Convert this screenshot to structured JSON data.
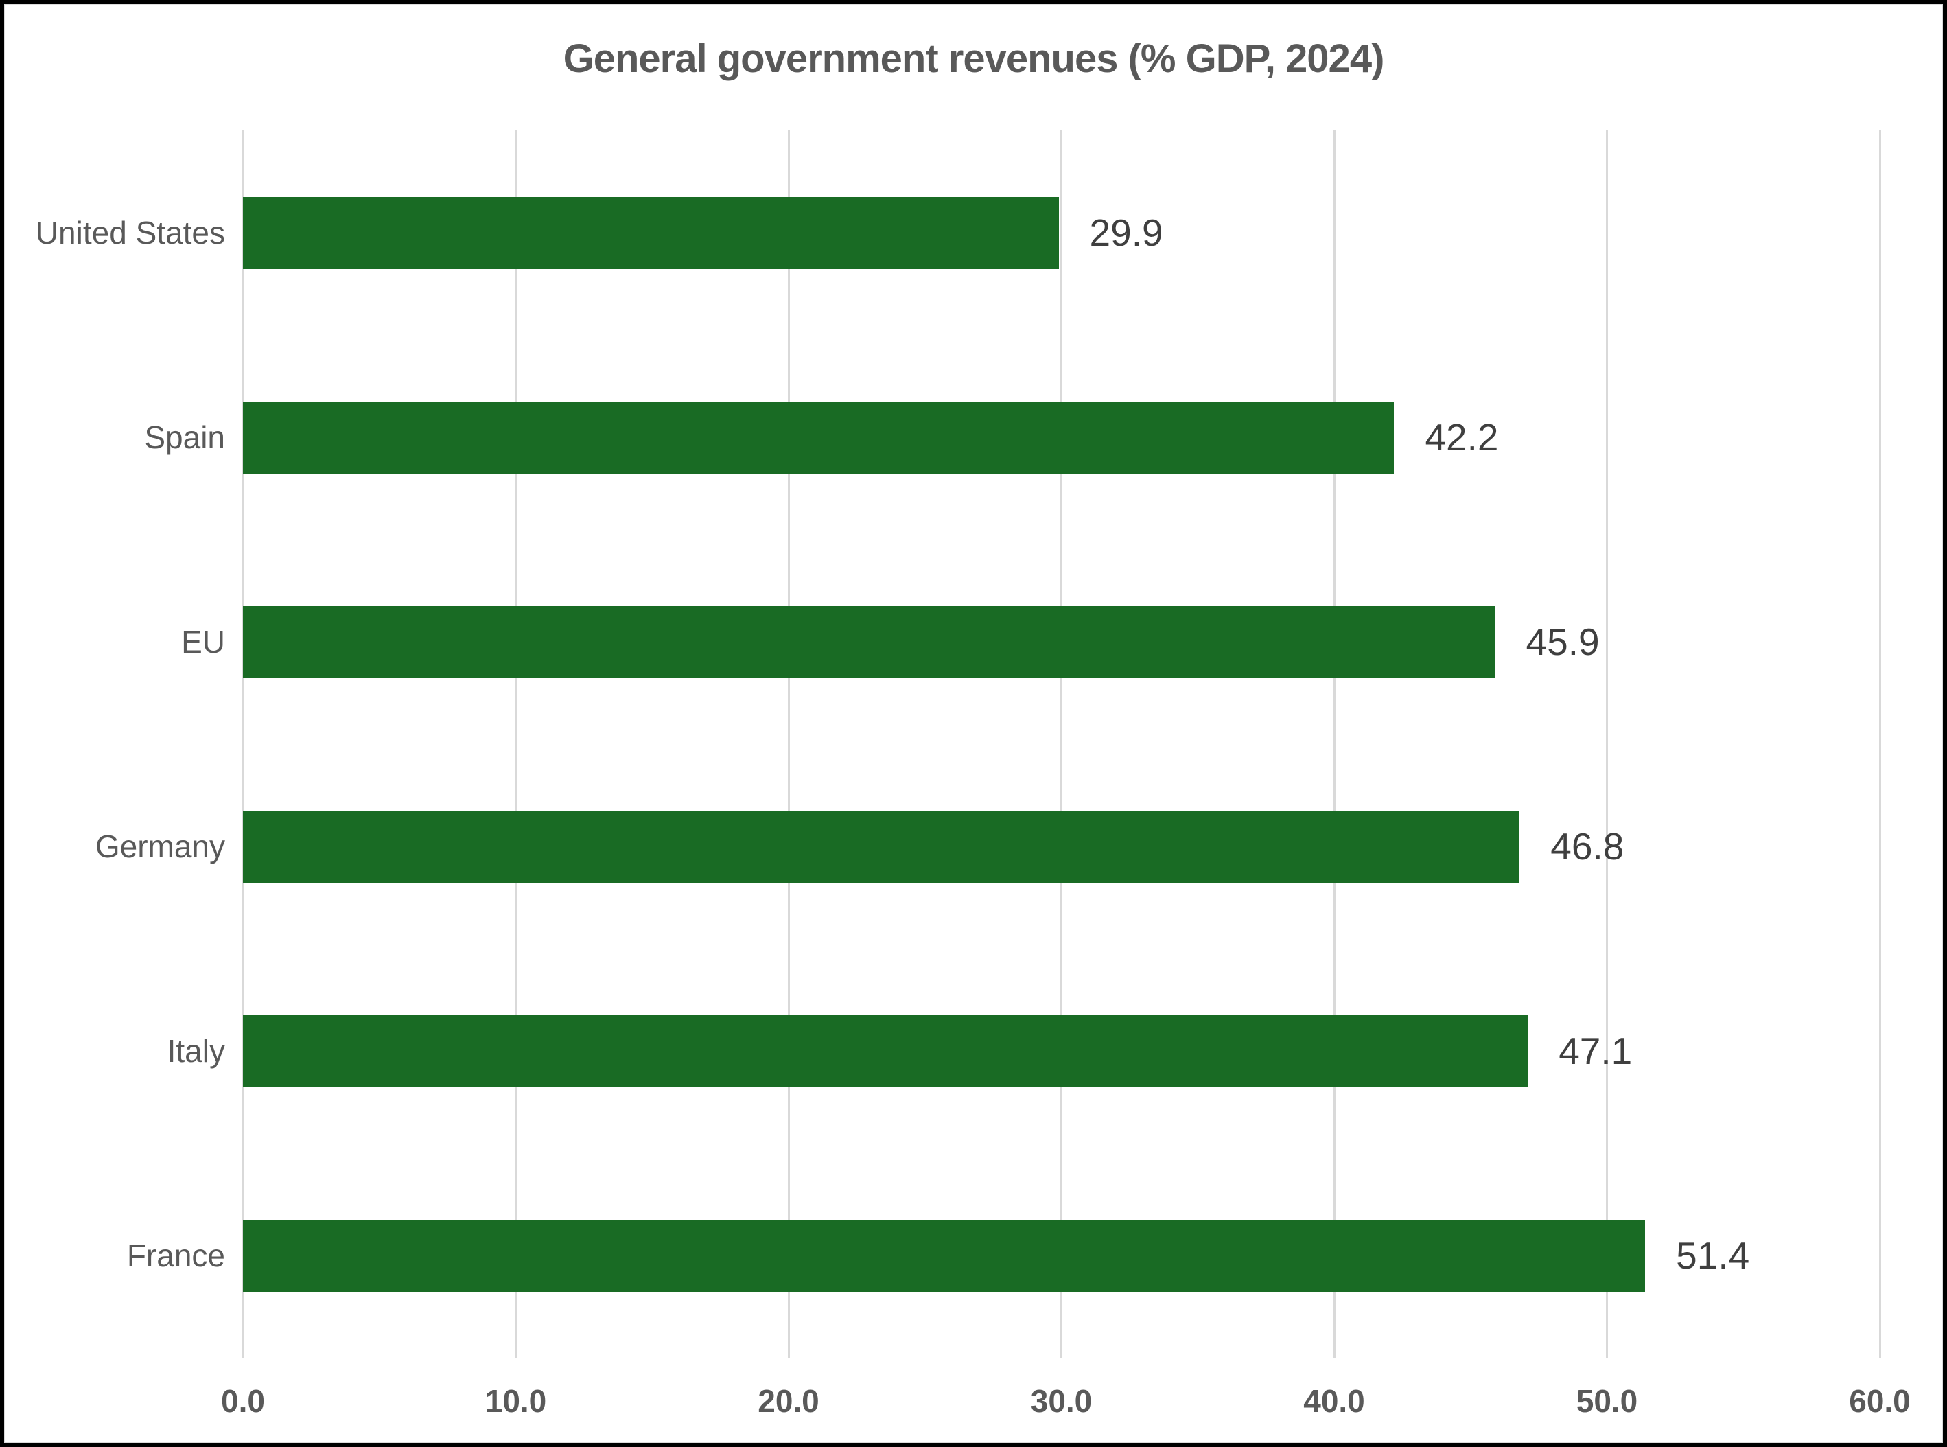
{
  "window": {
    "background_color": "#ffffff",
    "frame_border_color": "#000000",
    "inner_hairline_color": "#dcdcdc"
  },
  "chart_data": {
    "type": "bar",
    "orientation": "horizontal",
    "title": "General government revenues (% GDP, 2024)",
    "categories": [
      "United States",
      "Spain",
      "EU",
      "Germany",
      "Italy",
      "France"
    ],
    "values": [
      29.9,
      42.2,
      45.9,
      46.8,
      47.1,
      51.4
    ],
    "value_labels": [
      "29.9",
      "42.2",
      "45.9",
      "46.8",
      "47.1",
      "51.4"
    ],
    "x_tick_labels": [
      "0.0",
      "10.0",
      "20.0",
      "30.0",
      "40.0",
      "50.0",
      "60.0"
    ],
    "x_tick_values": [
      0,
      10,
      20,
      30,
      40,
      50,
      60
    ],
    "xlim": [
      0,
      60
    ],
    "xlabel": "",
    "ylabel": "",
    "grid": "vertical-gridlines-on",
    "legend": "none",
    "bar_color": "#196B24",
    "gridline_color": "#d9d9d9",
    "title_color": "#595959",
    "category_label_color": "#595959",
    "value_label_color": "#3f3f3f",
    "tick_label_color": "#595959"
  }
}
